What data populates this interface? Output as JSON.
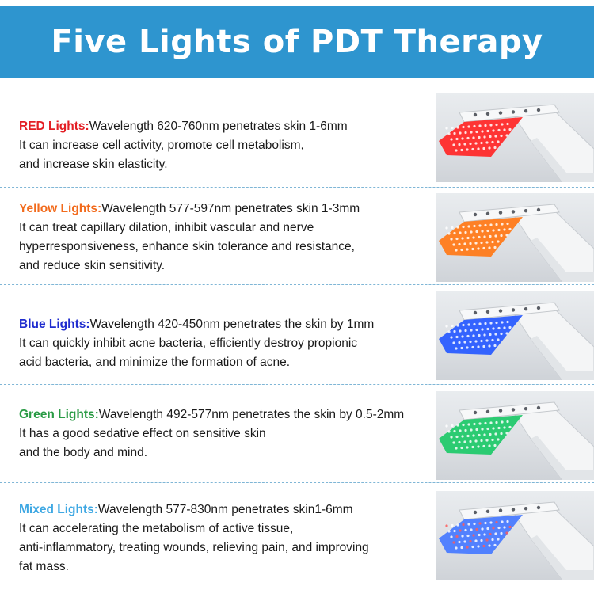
{
  "header": {
    "title": "Five Lights of PDT Therapy"
  },
  "lights": [
    {
      "label": "RED Lights:",
      "color": "#e31e24",
      "panel_color": "#ff2a2a",
      "lines": [
        "Wavelength 620-760nm penetrates skin 1-6mm",
        "It can increase cell activity, promote cell metabolism,",
        "and increase skin elasticity."
      ],
      "image_icon": "red-led-panel"
    },
    {
      "label": "Yellow Lights:",
      "color": "#f26a1b",
      "panel_color": "#ff7a1a",
      "lines": [
        "Wavelength 577-597nm penetrates skin 1-3mm",
        "It can treat capillary dilation, inhibit vascular and nerve",
        "hyperresponsiveness, enhance skin tolerance and resistance,",
        "and reduce skin sensitivity."
      ],
      "image_icon": "yellow-led-panel"
    },
    {
      "label": "Blue Lights:",
      "color": "#1f2ccf",
      "panel_color": "#2a5cff",
      "lines": [
        "Wavelength 420-450nm penetrates the skin by 1mm",
        "It can quickly inhibit acne bacteria, efficiently destroy propionic",
        "acid bacteria, and minimize the formation of acne."
      ],
      "image_icon": "blue-led-panel"
    },
    {
      "label": "Green Lights:",
      "color": "#2a9b45",
      "panel_color": "#22c96b",
      "lines": [
        "Wavelength 492-577nm penetrates the skin by 0.5-2mm",
        "It has a good sedative effect on sensitive skin",
        "and the body and mind."
      ],
      "image_icon": "green-led-panel"
    },
    {
      "label": "Mixed Lights:",
      "color": "#3fa8e3",
      "panel_color": "#4a7bff",
      "lines": [
        "Wavelength 577-830nm penetrates skin1-6mm",
        "It can accelerating the metabolism of active tissue,",
        "anti-inflammatory, treating wounds, relieving pain, and improving",
        "fat mass."
      ],
      "image_icon": "mixed-led-panel"
    }
  ]
}
